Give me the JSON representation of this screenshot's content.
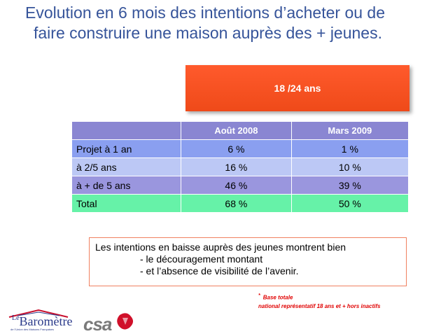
{
  "title": {
    "line1": "Evolution en 6 mois des intentions d’acheter ou de",
    "line2": "faire construire une maison auprès des + jeunes."
  },
  "segment_label": "18 /24 ans",
  "table": {
    "headers": [
      "",
      "Août 2008",
      "Mars 2009"
    ],
    "rows": [
      {
        "label": "Projet à 1 an",
        "aout_2008": "6 %",
        "mars_2009": "1 %"
      },
      {
        "label": "à 2/5 ans",
        "aout_2008": "16 %",
        "mars_2009": "10 %"
      },
      {
        "label": "à + de 5 ans",
        "aout_2008": "46 %",
        "mars_2009": "39 %"
      },
      {
        "label": "Total",
        "aout_2008": "68 %",
        "mars_2009": "50 %"
      }
    ]
  },
  "note": {
    "line1": "Les intentions en baisse auprès des jeunes montrent bien",
    "line2": "- le découragement montant",
    "line3": "- et l’absence de visibilité de l’avenir."
  },
  "footnote": {
    "marker": "*",
    "line1": "Base totale",
    "line2": "national représentatif 18 ans et + hors inactifs"
  },
  "logos": {
    "barometre": {
      "word_prefix": "Le",
      "word": "Baromètre",
      "subtitle": "de l'Union des Maisons Françaises"
    },
    "csa": {
      "word": "csa"
    }
  },
  "colors": {
    "title": "#36549a",
    "segment_box": "#ff5a2c",
    "header": "#8a86d2",
    "row1": "#8a9ff0",
    "row2": "#bcc8f5",
    "row3": "#9a96de",
    "total_row": "#66f2a8",
    "footnote": "#e00000"
  }
}
